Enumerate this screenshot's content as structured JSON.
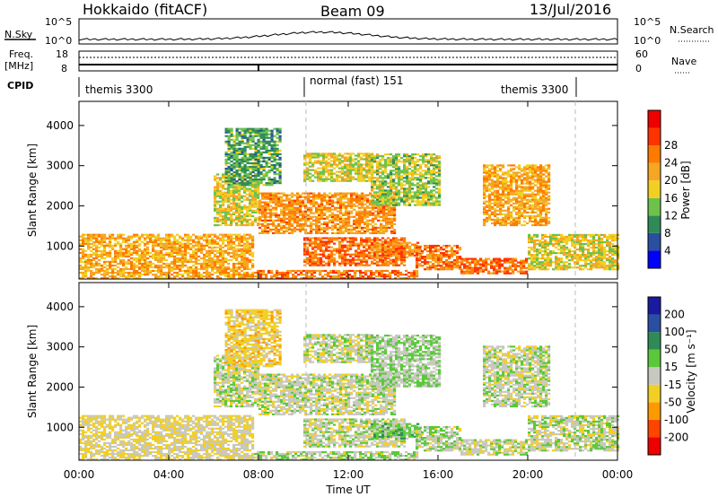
{
  "header": {
    "station": "Hokkaido (fitACF)",
    "beam": "Beam 09",
    "date": "13/Jul/2016"
  },
  "noise_panel": {
    "left_label": "N.Sky",
    "right_label": "N.Search",
    "ticks_top": "10^5",
    "ticks_bottom": "10^0"
  },
  "freq_panel": {
    "left_label_line1": "Freq.",
    "left_label_line2": "[MHz]",
    "right_label": "Nave",
    "left_ticks": [
      "18",
      "8"
    ],
    "right_ticks": [
      "60",
      "0"
    ]
  },
  "cpid_panel": {
    "label": "CPID",
    "segments": [
      "themis 3300",
      "normal (fast) 151",
      "themis 3300"
    ]
  },
  "x_axis": {
    "title": "Time UT",
    "ticks": [
      "00:00",
      "04:00",
      "08:00",
      "12:00",
      "16:00",
      "20:00",
      "00:00"
    ]
  },
  "power_panel": {
    "ylabel": "Slant Range [km]",
    "yticks": [
      "1000",
      "2000",
      "3000",
      "4000"
    ],
    "colorbar_title": "Power [dB]",
    "colorbar_ticks": [
      "4",
      "8",
      "12",
      "16",
      "20",
      "24",
      "28"
    ],
    "colors": [
      "#0000ff",
      "#2a4fa0",
      "#2e8b57",
      "#6cc24a",
      "#f2cf23",
      "#f5a623",
      "#ff7a00",
      "#ff3300",
      "#ee0000"
    ]
  },
  "velocity_panel": {
    "ylabel": "Slant Range [km]",
    "yticks": [
      "1000",
      "2000",
      "3000",
      "4000"
    ],
    "colorbar_title": "Velocity [m s⁻¹]",
    "colorbar_ticks": [
      "200",
      "100",
      "50",
      "15",
      "-15",
      "-50",
      "-100",
      "-200"
    ],
    "colors": [
      "#1a1aa0",
      "#2a4fa0",
      "#2e8b57",
      "#5ac83a",
      "#c8c8c0",
      "#f2cf23",
      "#ff9900",
      "#ff4400",
      "#ee0000"
    ]
  },
  "chart_data": {
    "type": "heatmap",
    "xlim_hours": [
      0,
      24
    ],
    "ylim_km": [
      180,
      4600
    ],
    "grid": false,
    "cpid_changes_hours": [
      10,
      22
    ],
    "regions": [
      {
        "t": [
          0,
          7.8
        ],
        "r": [
          180,
          1300
        ],
        "p": 22,
        "v": -15
      },
      {
        "t": [
          7.8,
          15
        ],
        "r": [
          180,
          400
        ],
        "p": 26,
        "v": 10
      },
      {
        "t": [
          10,
          14.5
        ],
        "r": [
          500,
          1200
        ],
        "p": 27,
        "v": 0
      },
      {
        "t": [
          13,
          15.2
        ],
        "r": [
          700,
          1100
        ],
        "p": 25,
        "v": 30
      },
      {
        "t": [
          15,
          17
        ],
        "r": [
          400,
          1000
        ],
        "p": 26,
        "v": 10
      },
      {
        "t": [
          17,
          20
        ],
        "r": [
          300,
          700
        ],
        "p": 27,
        "v": 0
      },
      {
        "t": [
          20,
          24
        ],
        "r": [
          400,
          1300
        ],
        "p": 18,
        "v": 0
      },
      {
        "t": [
          6,
          8
        ],
        "r": [
          1500,
          2800
        ],
        "p": 18,
        "v": 0
      },
      {
        "t": [
          8,
          14
        ],
        "r": [
          1300,
          2300
        ],
        "p": 24,
        "v": 0
      },
      {
        "t": [
          10,
          13
        ],
        "r": [
          2600,
          3300
        ],
        "p": 18,
        "v": 0
      },
      {
        "t": [
          13,
          16
        ],
        "r": [
          2000,
          3300
        ],
        "p": 16,
        "v": 15
      },
      {
        "t": [
          18,
          21
        ],
        "r": [
          1500,
          3000
        ],
        "p": 22,
        "v": 0
      },
      {
        "t": [
          6.5,
          9
        ],
        "r": [
          2500,
          3900
        ],
        "p": 12,
        "v": -30
      }
    ]
  }
}
